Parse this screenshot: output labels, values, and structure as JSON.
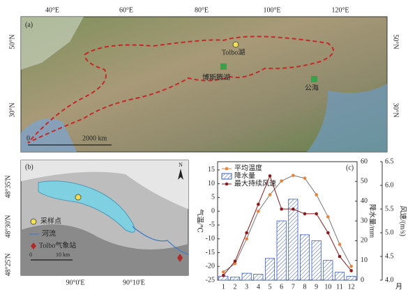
{
  "panel_a": {
    "label": "(a)",
    "lon_ticks": [
      "40°E",
      "60°E",
      "80°E",
      "100°E",
      "120°E"
    ],
    "lat_ticks_left": [
      "50°N",
      "30°N"
    ],
    "lat_ticks_right": [
      "50°N",
      "30°N"
    ],
    "sites": [
      "Tolbo湖",
      "博斯腾湖",
      "公海"
    ],
    "scale": [
      "0",
      "2000 km"
    ]
  },
  "panel_b": {
    "label": "(b)",
    "north": "N",
    "lat_ticks": [
      "48°35'N",
      "48°30'N",
      "48°25'N"
    ],
    "lon_ticks": [
      "90°0'E",
      "90°10'E"
    ],
    "legend": [
      "采样点",
      "河流",
      "Tolbo气象站"
    ],
    "scale": [
      "0",
      "10 km"
    ]
  },
  "chart_data": {
    "type": "combo",
    "label": "(c)",
    "x_label": "月",
    "y_label": "气温/℃",
    "y2_label": "降水量/mm",
    "y3_label": "风速/(m/s)",
    "categories": [
      "1",
      "2",
      "3",
      "4",
      "5",
      "6",
      "7",
      "8",
      "9",
      "10",
      "11",
      "12"
    ],
    "ylim": [
      -25,
      18
    ],
    "yticks": [
      -25,
      -20,
      -15,
      -10,
      -5,
      0,
      5,
      10,
      15
    ],
    "y2lim": [
      0,
      60
    ],
    "y2ticks": [
      0,
      10,
      20,
      30,
      40,
      50,
      60
    ],
    "y3lim": [
      4,
      6.5
    ],
    "y3ticks": [
      {
        "value": 4,
        "label": "4.0"
      },
      4.5,
      {
        "value": 5,
        "label": "5.0"
      },
      5.5,
      {
        "value": 6,
        "label": "6.0"
      },
      6.5
    ],
    "series": [
      {
        "name": "平均温度",
        "type": "line",
        "color": "#e8833a",
        "values": [
          -22,
          -19,
          -10,
          0,
          6,
          11,
          13,
          12,
          6,
          -2,
          -12,
          -20
        ]
      },
      {
        "name": "降水量",
        "type": "bar",
        "axis": "y2",
        "color": "#3a5bbf",
        "values": [
          2,
          1.5,
          3.5,
          3,
          11,
          30,
          41,
          23,
          20,
          10,
          4,
          2
        ]
      },
      {
        "name": "最大持续风速",
        "type": "line",
        "axis": "y3",
        "color": "#8b1a1a",
        "values": [
          4.1,
          4.4,
          5.0,
          5.6,
          6.2,
          5.5,
          5.5,
          5.4,
          5.4,
          5.0,
          4.5,
          4.2
        ]
      }
    ]
  }
}
